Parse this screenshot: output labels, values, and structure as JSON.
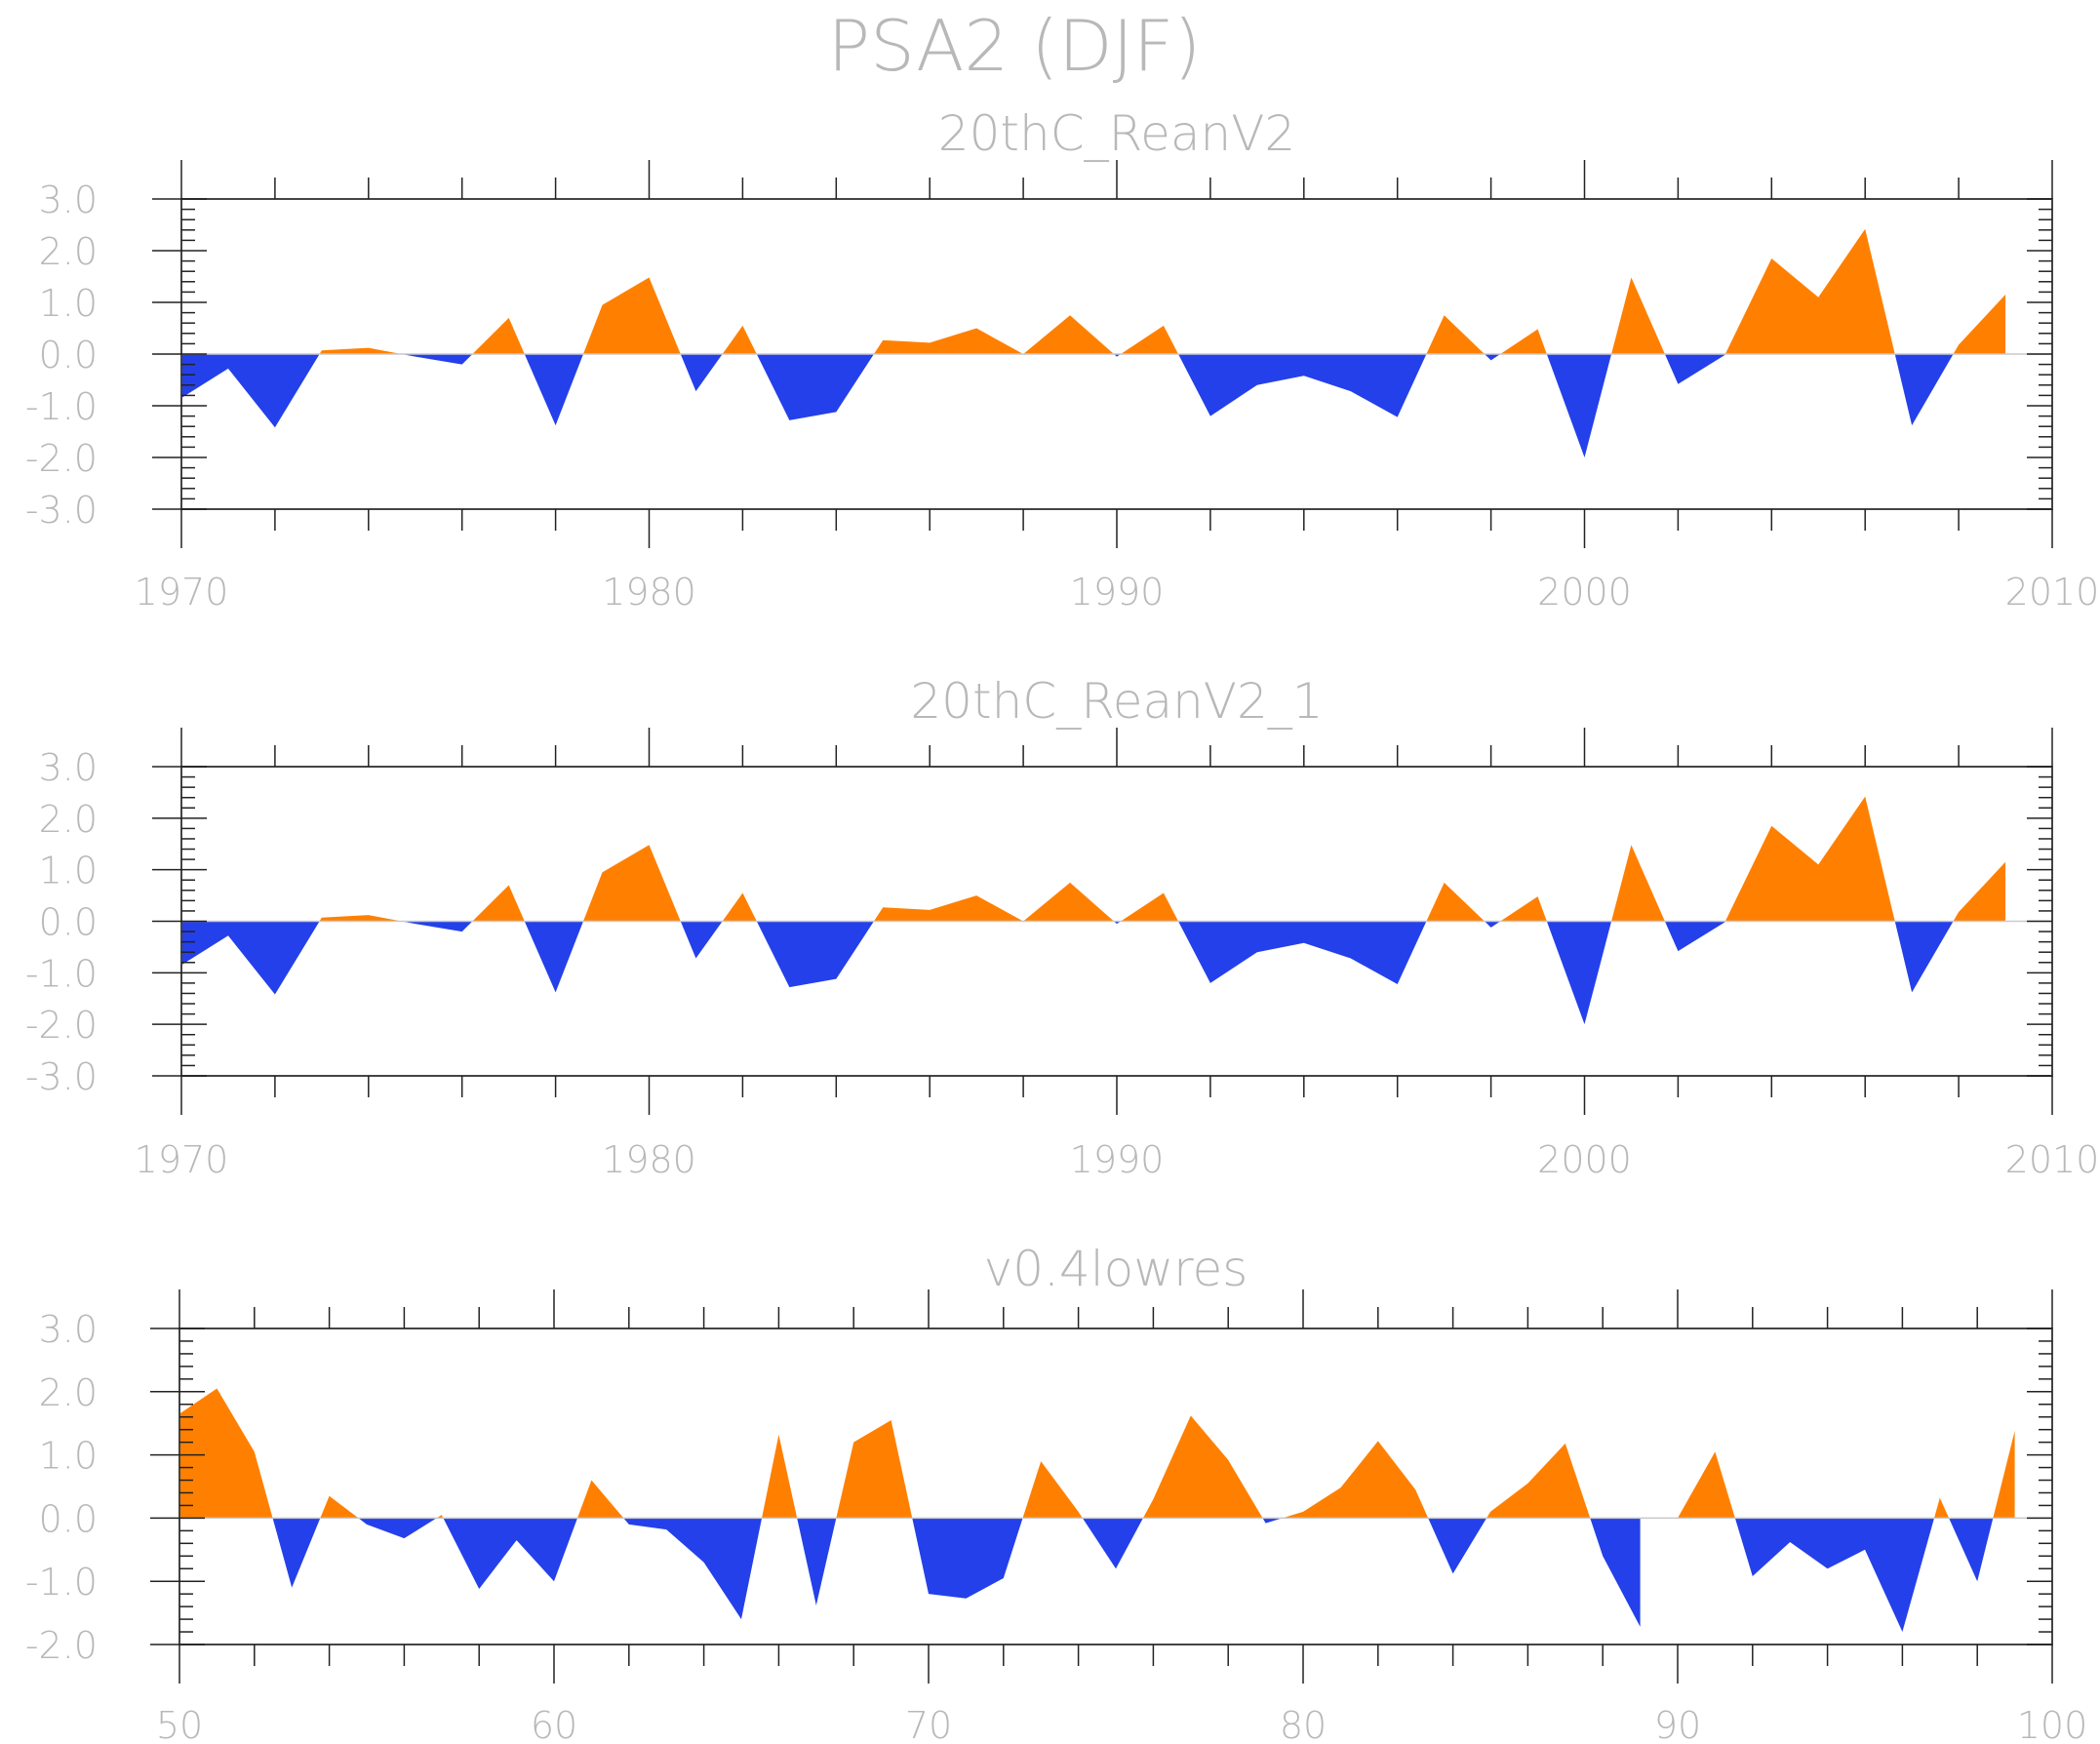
{
  "figure": {
    "main_title": "PSA2 (DJF)",
    "colors": {
      "positive": "#ff8000",
      "negative": "#2440ea",
      "text": "#b8b8b8",
      "frame": "#444444",
      "zero_line": "#c9c9c9"
    }
  },
  "chart_data": [
    {
      "type": "area",
      "title": "20thC_ReanV2",
      "x_start": 1970,
      "values": [
        -0.85,
        -0.28,
        -1.42,
        0.07,
        0.12,
        -0.05,
        -0.2,
        0.7,
        -1.38,
        0.95,
        1.48,
        -0.72,
        0.55,
        -1.28,
        -1.12,
        0.27,
        0.22,
        0.5,
        0.0,
        0.75,
        -0.05,
        0.55,
        -1.2,
        -0.6,
        -0.42,
        -0.72,
        -1.22,
        0.75,
        -0.12,
        0.48,
        -2.0,
        1.48,
        -0.58,
        -0.02,
        1.85,
        1.1,
        2.42,
        -1.38,
        0.18,
        1.15
      ],
      "xlim": [
        1970,
        2010
      ],
      "ylim": [
        -3,
        3
      ],
      "x_ticks": [
        1970,
        1980,
        1990,
        2000,
        2010
      ],
      "y_ticks": [
        3,
        2,
        1,
        0,
        -1,
        -2,
        -3
      ],
      "x_tick_labels": [
        "1970",
        "1980",
        "1990",
        "2000",
        "2010"
      ],
      "y_tick_labels": [
        "3.0",
        "2.0",
        "1.0",
        "0.0",
        "-1.0",
        "-2.0",
        "-3.0"
      ]
    },
    {
      "type": "area",
      "title": "20thC_ReanV2_1",
      "x_start": 1970,
      "values": [
        -0.85,
        -0.28,
        -1.42,
        0.07,
        0.12,
        -0.05,
        -0.2,
        0.7,
        -1.38,
        0.95,
        1.48,
        -0.72,
        0.55,
        -1.28,
        -1.12,
        0.27,
        0.22,
        0.5,
        0.0,
        0.75,
        -0.05,
        0.55,
        -1.2,
        -0.6,
        -0.42,
        -0.72,
        -1.22,
        0.75,
        -0.12,
        0.48,
        -2.0,
        1.48,
        -0.58,
        -0.02,
        1.85,
        1.1,
        2.42,
        -1.38,
        0.18,
        1.15
      ],
      "xlim": [
        1970,
        2010
      ],
      "ylim": [
        -3,
        3
      ],
      "x_ticks": [
        1970,
        1980,
        1990,
        2000,
        2010
      ],
      "y_ticks": [
        3,
        2,
        1,
        0,
        -1,
        -2,
        -3
      ],
      "x_tick_labels": [
        "1970",
        "1980",
        "1990",
        "2000",
        "2010"
      ],
      "y_tick_labels": [
        "3.0",
        "2.0",
        "1.0",
        "0.0",
        "-1.0",
        "-2.0",
        "-3.0"
      ]
    },
    {
      "type": "area",
      "title": "v0.4lowres",
      "x_start": 50,
      "values": [
        1.65,
        2.05,
        1.05,
        -1.1,
        0.35,
        -0.1,
        -0.32,
        0.05,
        -1.12,
        -0.35,
        -1.0,
        0.6,
        -0.1,
        -0.18,
        -0.7,
        -1.6,
        1.32,
        -1.38,
        1.2,
        1.55,
        -1.2,
        -1.27,
        -0.95,
        0.9,
        0.1,
        -0.8,
        0.3,
        1.62,
        0.92,
        -0.08,
        0.1,
        0.48,
        1.22,
        0.45,
        -0.88,
        0.1,
        0.55,
        1.18,
        -0.6,
        -1.72,
        0.0,
        1.05,
        -0.92,
        -0.38,
        -0.8,
        -0.5,
        -1.8,
        0.32,
        -1.0,
        1.38
      ],
      "xlim": [
        50,
        100
      ],
      "ylim": [
        -2,
        3
      ],
      "x_ticks": [
        50,
        60,
        70,
        80,
        90,
        100
      ],
      "y_ticks": [
        3,
        2,
        1,
        0,
        -1,
        -2
      ],
      "x_tick_labels": [
        "50",
        "60",
        "70",
        "80",
        "90",
        "100"
      ],
      "y_tick_labels": [
        "3.0",
        "2.0",
        "1.0",
        "0.0",
        "-1.0",
        "-2.0"
      ]
    }
  ]
}
